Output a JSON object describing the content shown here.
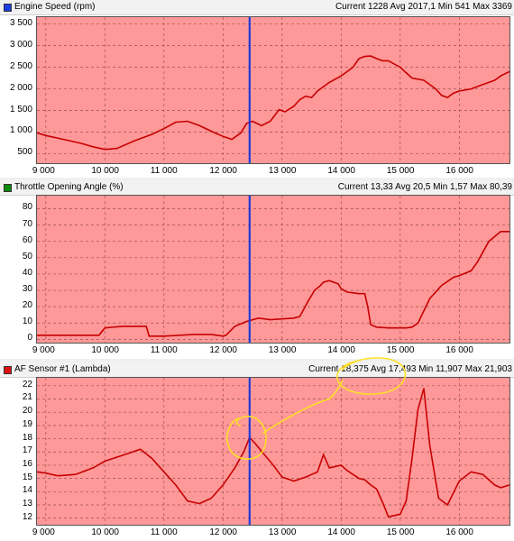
{
  "cursor_x": 12450,
  "x_range": [
    8850,
    16850
  ],
  "x_ticks": [
    "9 000",
    "10 000",
    "11 000",
    "12 000",
    "13 000",
    "14 000",
    "15 000",
    "16 000"
  ],
  "x_tick_values": [
    9000,
    10000,
    11000,
    12000,
    13000,
    14000,
    15000,
    16000
  ],
  "colors": {
    "plot_bg": "#ff9898",
    "line": "#c80000",
    "cursor": "#1e3cdc",
    "grid": "#a05050",
    "annotation": "#ffe028"
  },
  "panels": [
    {
      "title": "Engine Speed (rpm)",
      "stats": "Current 1228 Avg 2017,1 Min 541 Max 3369",
      "legend_color": "#1a3ee0",
      "y_ticks": [
        "500",
        "1 000",
        "1 500",
        "2 000",
        "2 500",
        "3 000",
        "3 500"
      ],
      "y_tick_values": [
        500,
        1000,
        1500,
        2000,
        2500,
        3000,
        3500
      ],
      "ylim": [
        280,
        3660
      ]
    },
    {
      "title": "Throttle Opening Angle (%)",
      "stats": "Current 13,33 Avg 20,5 Min 1,57 Max 80,39",
      "legend_color": "#0a8a0a",
      "y_ticks": [
        "0",
        "10",
        "20",
        "30",
        "40",
        "50",
        "60",
        "70",
        "80"
      ],
      "y_tick_values": [
        0,
        10,
        20,
        30,
        40,
        50,
        60,
        70,
        80
      ],
      "ylim": [
        -2,
        88
      ]
    },
    {
      "title": "AF Sensor #1 (Lambda)",
      "stats": "Current 18,375 Avg 17,493 Min 11,907 Max 21,903",
      "legend_color": "#e01010",
      "y_ticks": [
        "12",
        "13",
        "14",
        "15",
        "16",
        "17",
        "18",
        "19",
        "20",
        "21",
        "22"
      ],
      "y_tick_values": [
        12,
        13,
        14,
        15,
        16,
        17,
        18,
        19,
        20,
        21,
        22
      ],
      "ylim": [
        11.5,
        22.6
      ]
    }
  ],
  "chart_data": [
    {
      "type": "line",
      "title": "Engine Speed (rpm)",
      "xlabel": "",
      "ylabel": "",
      "series": [
        {
          "name": "Engine Speed (rpm)",
          "x": [
            8850,
            9000,
            9300,
            9600,
            9800,
            10000,
            10200,
            10500,
            10800,
            11000,
            11200,
            11400,
            11600,
            11800,
            12000,
            12150,
            12300,
            12400,
            12500,
            12650,
            12800,
            12950,
            13050,
            13200,
            13300,
            13400,
            13500,
            13600,
            13800,
            14000,
            14200,
            14300,
            14400,
            14500,
            14600,
            14700,
            14800,
            15000,
            15200,
            15400,
            15600,
            15700,
            15800,
            15900,
            16000,
            16200,
            16400,
            16600,
            16700,
            16850
          ],
          "y": [
            980,
            920,
            830,
            740,
            660,
            600,
            620,
            800,
            950,
            1080,
            1230,
            1250,
            1150,
            1020,
            900,
            830,
            980,
            1200,
            1250,
            1150,
            1250,
            1520,
            1470,
            1600,
            1750,
            1830,
            1800,
            1950,
            2150,
            2300,
            2500,
            2700,
            2750,
            2760,
            2700,
            2650,
            2650,
            2500,
            2250,
            2200,
            2000,
            1850,
            1800,
            1900,
            1950,
            2000,
            2100,
            2200,
            2300,
            2400
          ]
        }
      ]
    },
    {
      "type": "line",
      "title": "Throttle Opening Angle (%)",
      "xlabel": "",
      "ylabel": "",
      "series": [
        {
          "name": "Throttle Opening Angle (%)",
          "x": [
            8850,
            9000,
            9500,
            9900,
            10000,
            10300,
            10600,
            10700,
            10750,
            11000,
            11500,
            11800,
            12000,
            12050,
            12200,
            12400,
            12600,
            12800,
            13000,
            13200,
            13300,
            13450,
            13550,
            13650,
            13700,
            13800,
            13950,
            14000,
            14100,
            14300,
            14400,
            14450,
            14500,
            14600,
            14800,
            15100,
            15200,
            15300,
            15500,
            15700,
            15900,
            16000,
            16200,
            16300,
            16500,
            16700,
            16850
          ],
          "y": [
            2.5,
            2.5,
            2.5,
            2.5,
            7,
            8,
            8,
            8,
            2,
            2,
            3,
            3,
            2,
            2.5,
            8,
            11,
            13,
            12,
            12.5,
            13,
            14,
            24,
            30,
            33,
            35,
            36,
            34,
            31,
            29,
            28,
            28,
            20,
            9,
            7.5,
            7,
            7,
            7.5,
            10,
            25,
            33,
            38,
            39,
            42,
            47,
            60,
            66,
            66
          ]
        }
      ]
    },
    {
      "type": "line",
      "title": "AF Sensor #1 (Lambda)",
      "xlabel": "",
      "ylabel": "",
      "series": [
        {
          "name": "AF Sensor #1 (Lambda)",
          "x": [
            8850,
            9000,
            9200,
            9500,
            9800,
            10000,
            10200,
            10400,
            10600,
            10800,
            11000,
            11200,
            11400,
            11600,
            11800,
            12000,
            12200,
            12350,
            12450,
            12550,
            12700,
            12850,
            13000,
            13200,
            13400,
            13600,
            13700,
            13800,
            14000,
            14100,
            14300,
            14400,
            14500,
            14600,
            14700,
            14800,
            15000,
            15100,
            15200,
            15300,
            15400,
            15500,
            15650,
            15800,
            16000,
            16200,
            16400,
            16600,
            16700,
            16850
          ],
          "y": [
            15.5,
            15.4,
            15.2,
            15.3,
            15.8,
            16.3,
            16.6,
            16.9,
            17.2,
            16.5,
            15.5,
            14.5,
            13.3,
            13.1,
            13.5,
            14.5,
            15.8,
            17.0,
            18.1,
            17.6,
            16.8,
            16.0,
            15.1,
            14.8,
            15.1,
            15.5,
            16.8,
            15.8,
            16.0,
            15.6,
            15.0,
            14.9,
            14.5,
            14.2,
            13.2,
            12.1,
            12.3,
            13.3,
            16.5,
            20.2,
            21.8,
            17.5,
            13.5,
            13.0,
            14.8,
            15.5,
            15.3,
            14.5,
            14.3,
            14.5
          ]
        }
      ]
    }
  ],
  "annotations": {
    "marks": [
      "yellow-loop-circle-on-peak",
      "yellow-scribble-around-current-readout",
      "yellow-arrow-line"
    ]
  }
}
